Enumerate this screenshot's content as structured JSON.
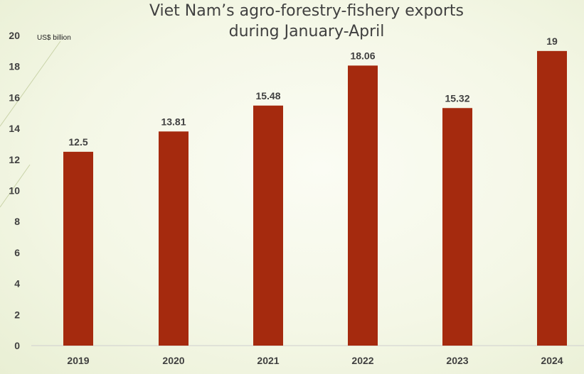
{
  "chart_data": {
    "type": "bar",
    "title_lines": [
      "Viet Nam’s agro-forestry-fishery exports",
      "during January-April"
    ],
    "unit_label": "US$ billion",
    "categories": [
      "2019",
      "2020",
      "2021",
      "2022",
      "2023",
      "2024"
    ],
    "values": [
      12.5,
      13.81,
      15.48,
      18.06,
      15.32,
      19
    ],
    "value_labels": [
      "12.5",
      "13.81",
      "15.48",
      "18.06",
      "15.32",
      "19"
    ],
    "y_ticks": [
      "0",
      "2",
      "4",
      "6",
      "8",
      "10",
      "12",
      "14",
      "16",
      "18",
      "20"
    ],
    "ylim": [
      0,
      20
    ],
    "grid": false,
    "legend": "none",
    "bar_color": "#a52a0e"
  }
}
